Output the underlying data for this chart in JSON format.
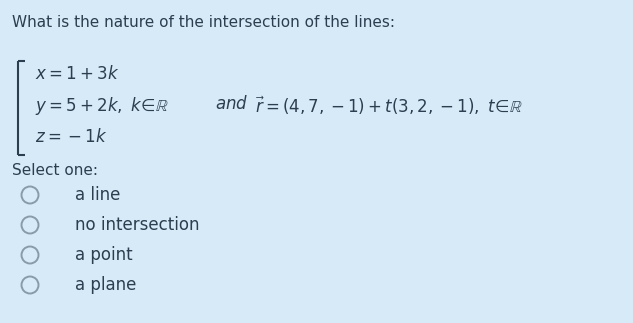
{
  "background_color": "#d6eaf8",
  "title_text": "What is the nature of the intersection of the lines:",
  "select_one": "Select one:",
  "options": [
    "a line",
    "no intersection",
    "a point",
    "a plane"
  ],
  "title_fontsize": 11.0,
  "body_fontsize": 12.0,
  "option_fontsize": 12.0,
  "text_color": "#2c3e50",
  "circle_color": "#8a9ba8",
  "fig_width": 6.33,
  "fig_height": 3.23,
  "dpi": 100
}
